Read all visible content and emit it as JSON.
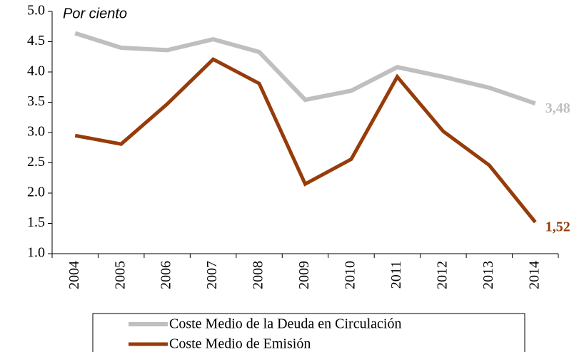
{
  "chart_data": {
    "type": "line",
    "subtitle": "Por ciento",
    "categories": [
      "2004",
      "2005",
      "2006",
      "2007",
      "2008",
      "2009",
      "2010",
      "2011",
      "2012",
      "2013",
      "2014"
    ],
    "series": [
      {
        "name": "Coste Medio de la Deuda en Circulación",
        "color": "#bfbfbf",
        "values": [
          4.64,
          4.4,
          4.36,
          4.54,
          4.33,
          3.54,
          3.69,
          4.08,
          3.92,
          3.74,
          3.48
        ],
        "value_labels": [
          null,
          null,
          null,
          null,
          null,
          null,
          null,
          null,
          null,
          null,
          "3,48"
        ]
      },
      {
        "name": "Coste Medio de Emisión",
        "color": "#963c0a",
        "values": [
          2.95,
          2.81,
          3.47,
          4.21,
          3.81,
          2.15,
          2.56,
          3.92,
          3.02,
          2.46,
          1.52
        ],
        "value_labels": [
          null,
          null,
          null,
          null,
          null,
          null,
          null,
          null,
          null,
          null,
          "1,52"
        ]
      }
    ],
    "ylim": [
      1,
      5
    ],
    "yticks": [
      {
        "value": 1,
        "label": "1.0"
      },
      {
        "value": 1.5,
        "label": "1.5"
      },
      {
        "value": 2,
        "label": "2.0"
      },
      {
        "value": 2.5,
        "label": "2.5"
      },
      {
        "value": 3,
        "label": "3.0"
      },
      {
        "value": 3.5,
        "label": "3.5"
      },
      {
        "value": 4,
        "label": "4.0"
      },
      {
        "value": 4.5,
        "label": "4.5"
      },
      {
        "value": 5,
        "label": "5.0"
      }
    ],
    "legend": "bottom"
  }
}
